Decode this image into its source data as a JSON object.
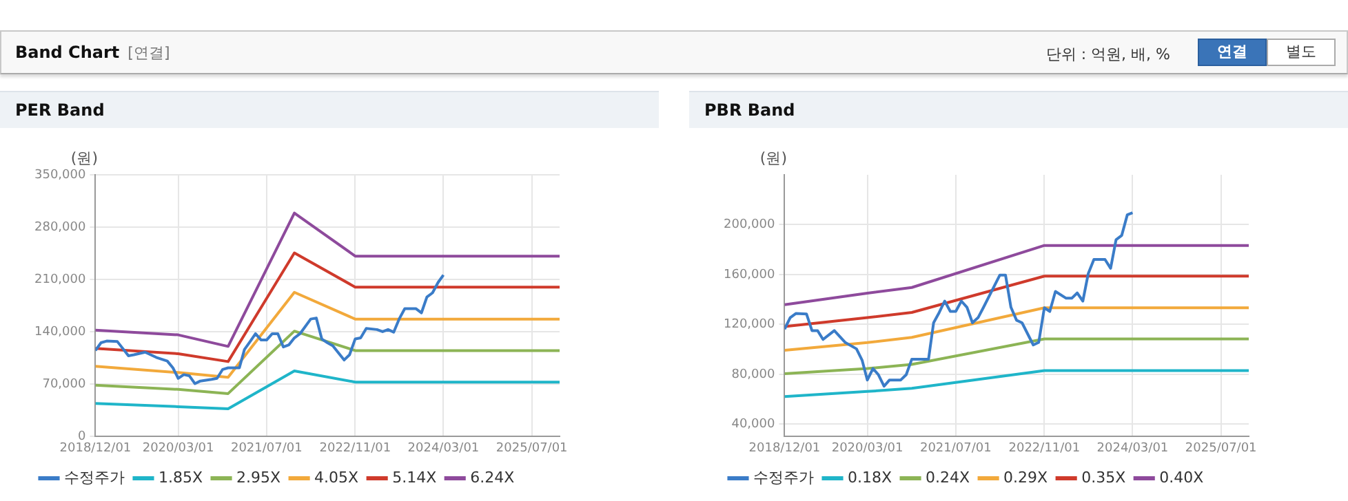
{
  "chart_data": [
    {
      "type": "other",
      "title": "Band Chart",
      "annotations": [
        "[연결]",
        "단위 : 억원, 배, %",
        "연결",
        "별도"
      ]
    },
    {
      "type": "line",
      "title": "PER Band",
      "ylabel": "(원)",
      "grid": true,
      "legend": "bottom",
      "marker": "none",
      "line_style": "solid",
      "xlim": [
        "2018-12-01",
        "2025-12-01"
      ],
      "xticks": [
        {
          "value": "2018-12-01",
          "label": "2018/12/01"
        },
        {
          "value": "2020-03-01",
          "label": "2020/03/01"
        },
        {
          "value": "2021-07-01",
          "label": "2021/07/01"
        },
        {
          "value": "2022-11-01",
          "label": "2022/11/01"
        },
        {
          "value": "2024-03-01",
          "label": "2024/03/01"
        },
        {
          "value": "2025-07-01",
          "label": "2025/07/01"
        }
      ],
      "ylim": [
        0,
        350000
      ],
      "yticks": [
        {
          "value": 0,
          "label": "0"
        },
        {
          "value": 70000,
          "label": "70,000"
        },
        {
          "value": 140000,
          "label": "140,000"
        },
        {
          "value": 210000,
          "label": "210,000"
        },
        {
          "value": 280000,
          "label": "280,000"
        },
        {
          "value": 350000,
          "label": "350,000"
        }
      ],
      "series": [
        {
          "name": "수정주가",
          "color": "#3a7cc8",
          "x": [
            "2018-12",
            "2019-01",
            "2019-02",
            "2019-04",
            "2019-05",
            "2019-06",
            "2019-07",
            "2019-09",
            "2019-11",
            "2020-01",
            "2020-02",
            "2020-03",
            "2020-04",
            "2020-05",
            "2020-06",
            "2020-07",
            "2020-09",
            "2020-10",
            "2020-11",
            "2020-12",
            "2021-02",
            "2021-03",
            "2021-04",
            "2021-05",
            "2021-06",
            "2021-07",
            "2021-08",
            "2021-09",
            "2021-10",
            "2021-11",
            "2021-12",
            "2022-01",
            "2022-03",
            "2022-04",
            "2022-05",
            "2022-06",
            "2022-07",
            "2022-09",
            "2022-10",
            "2022-11",
            "2022-12",
            "2023-01",
            "2023-03",
            "2023-04",
            "2023-05",
            "2023-06",
            "2023-07",
            "2023-08",
            "2023-10",
            "2023-11",
            "2023-12",
            "2024-01",
            "2024-02",
            "2024-03"
          ],
          "values": [
            115000,
            125500,
            127700,
            127000,
            117800,
            108000,
            109400,
            112900,
            105900,
            101000,
            91900,
            77900,
            82800,
            81400,
            70800,
            74300,
            76500,
            77900,
            89800,
            91900,
            91900,
            116400,
            127000,
            137500,
            129100,
            129100,
            137500,
            137500,
            119900,
            122700,
            131900,
            137500,
            157100,
            158500,
            130500,
            125500,
            121300,
            102400,
            109400,
            130500,
            131900,
            144500,
            143100,
            140300,
            143100,
            139600,
            157100,
            171100,
            171100,
            165500,
            186600,
            192200,
            206200,
            216000
          ]
        },
        {
          "name": "1.85X",
          "color": "#1fb5c9",
          "x": [
            "2018-12",
            "2020-03",
            "2020-12",
            "2021-12",
            "2022-11",
            "2025-12"
          ],
          "values": [
            44200,
            40000,
            37200,
            87700,
            72900,
            72900
          ]
        },
        {
          "name": "2.95X",
          "color": "#8cb455",
          "x": [
            "2018-12",
            "2020-03",
            "2020-12",
            "2021-12",
            "2022-11",
            "2025-12"
          ],
          "values": [
            68700,
            63100,
            57500,
            141000,
            115000,
            115000
          ]
        },
        {
          "name": "4.05X",
          "color": "#f2a93b",
          "x": [
            "2018-12",
            "2020-03",
            "2020-12",
            "2021-12",
            "2022-11",
            "2025-12"
          ],
          "values": [
            94000,
            85600,
            79300,
            192900,
            157100,
            157100
          ]
        },
        {
          "name": "5.14X",
          "color": "#cf3a2b",
          "x": [
            "2018-12",
            "2020-03",
            "2020-12",
            "2021-12",
            "2022-11",
            "2025-12"
          ],
          "values": [
            117800,
            110800,
            100300,
            245500,
            199900,
            199900
          ]
        },
        {
          "name": "6.24X",
          "color": "#8e4a9c",
          "x": [
            "2018-12",
            "2020-03",
            "2020-12",
            "2021-12",
            "2022-11",
            "2025-12"
          ],
          "values": [
            142400,
            136000,
            120600,
            298800,
            241300,
            241300
          ]
        }
      ]
    },
    {
      "type": "line",
      "title": "PBR Band",
      "ylabel": "(원)",
      "grid": true,
      "legend": "bottom",
      "marker": "none",
      "line_style": "solid",
      "xlim": [
        "2018-12-01",
        "2025-12-01"
      ],
      "xticks": [
        {
          "value": "2018-12-01",
          "label": "2018/12/01"
        },
        {
          "value": "2020-03-01",
          "label": "2020/03/01"
        },
        {
          "value": "2021-07-01",
          "label": "2021/07/01"
        },
        {
          "value": "2022-11-01",
          "label": "2022/11/01"
        },
        {
          "value": "2024-03-01",
          "label": "2024/03/01"
        },
        {
          "value": "2025-07-01",
          "label": "2025/07/01"
        }
      ],
      "ylim": [
        30000,
        240000
      ],
      "yticks": [
        {
          "value": 40000,
          "label": "40,000"
        },
        {
          "value": 80000,
          "label": "80,000"
        },
        {
          "value": 120000,
          "label": "120,000"
        },
        {
          "value": 160000,
          "label": "160,000"
        },
        {
          "value": 200000,
          "label": "200,000"
        }
      ],
      "series": [
        {
          "name": "수정주가",
          "color": "#3a7cc8",
          "x": [
            "2018-12",
            "2019-01",
            "2019-02",
            "2019-04",
            "2019-05",
            "2019-06",
            "2019-07",
            "2019-09",
            "2019-11",
            "2020-01",
            "2020-02",
            "2020-03",
            "2020-04",
            "2020-05",
            "2020-06",
            "2020-07",
            "2020-09",
            "2020-10",
            "2020-11",
            "2021-02",
            "2021-03",
            "2021-04",
            "2021-05",
            "2021-06",
            "2021-07",
            "2021-08",
            "2021-09",
            "2021-10",
            "2021-11",
            "2021-12",
            "2022-03",
            "2022-04",
            "2022-05",
            "2022-06",
            "2022-07",
            "2022-09",
            "2022-10",
            "2022-11",
            "2022-12",
            "2023-01",
            "2023-03",
            "2023-04",
            "2023-05",
            "2023-06",
            "2023-07",
            "2023-08",
            "2023-10",
            "2023-11",
            "2023-12",
            "2024-01",
            "2024-02",
            "2024-03"
          ],
          "values": [
            116200,
            125400,
            128700,
            128300,
            115000,
            115000,
            107900,
            115000,
            105400,
            100400,
            91300,
            75400,
            84600,
            79600,
            70400,
            75400,
            75400,
            79600,
            92100,
            92100,
            121300,
            129600,
            138700,
            130400,
            130400,
            138700,
            133700,
            121300,
            125400,
            133700,
            159600,
            159600,
            133700,
            123300,
            121300,
            103500,
            105600,
            133300,
            130400,
            146400,
            141000,
            141000,
            145200,
            138700,
            160800,
            172100,
            172100,
            165000,
            187900,
            191300,
            207900,
            209600
          ]
        },
        {
          "name": "0.18X",
          "color": "#1fb5c9",
          "x": [
            "2018-12",
            "2020-03",
            "2020-11",
            "2022-11",
            "2025-12"
          ],
          "values": [
            62100,
            66200,
            68700,
            82900,
            82900
          ]
        },
        {
          "name": "0.24X",
          "color": "#8cb455",
          "x": [
            "2018-12",
            "2020-03",
            "2020-11",
            "2022-11",
            "2025-12"
          ],
          "values": [
            80400,
            84600,
            87900,
            108300,
            108300
          ]
        },
        {
          "name": "0.29X",
          "color": "#f2a93b",
          "x": [
            "2018-12",
            "2020-03",
            "2020-11",
            "2022-11",
            "2025-12"
          ],
          "values": [
            99200,
            105400,
            109600,
            133300,
            133300
          ]
        },
        {
          "name": "0.35X",
          "color": "#cf3a2b",
          "x": [
            "2018-12",
            "2020-03",
            "2020-11",
            "2022-11",
            "2025-12"
          ],
          "values": [
            118300,
            125400,
            129600,
            158700,
            158700
          ]
        },
        {
          "name": "0.40X",
          "color": "#8e4a9c",
          "x": [
            "2018-12",
            "2020-03",
            "2020-11",
            "2022-11",
            "2025-12"
          ],
          "values": [
            135800,
            145000,
            149600,
            183300,
            183300
          ]
        }
      ]
    }
  ]
}
